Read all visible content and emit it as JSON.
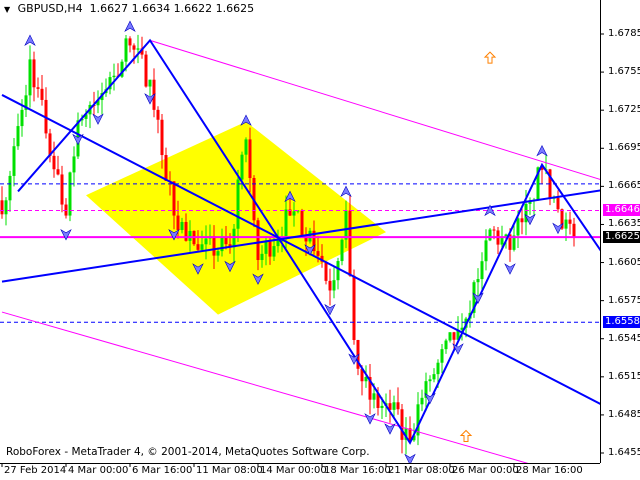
{
  "header": {
    "symbol": "GBPUSD,H4",
    "open": "1.6627",
    "high": "1.6634",
    "low": "1.6622",
    "close": "1.6625"
  },
  "copyright": "RoboForex - MetaTrader 4, © 2001-2014, MetaQuotes Software Corp.",
  "price_labels": [
    {
      "value": "1.6646",
      "bg": "#ff00ff",
      "fg": "#ffffff"
    },
    {
      "value": "1.6625",
      "bg": "#000000",
      "fg": "#ffffff"
    },
    {
      "value": "1.6558",
      "bg": "#0000ff",
      "fg": "#ffffff"
    }
  ],
  "colors": {
    "bull": "#00e000",
    "bear": "#ff0000",
    "trend": "#0000ff",
    "channel": "#ff00ff",
    "zone": "#ffff00",
    "arrow": "#ff8000"
  },
  "chart_data": {
    "type": "candlestick",
    "title": "GBPUSD,H4",
    "timeframe": "H4",
    "ylim": [
      1.644,
      1.681
    ],
    "y_ticks": [
      "1.6785",
      "1.6755",
      "1.6725",
      "1.6695",
      "1.6665",
      "1.6635",
      "1.6605",
      "1.6575",
      "1.6545",
      "1.6515",
      "1.6485",
      "1.6455"
    ],
    "x_ticks": [
      {
        "label": "27 Feb 2014",
        "t": "2014-02-27 08:00"
      },
      {
        "label": "4 Mar 00:00",
        "t": "2014-03-04 00:00"
      },
      {
        "label": "6 Mar 16:00",
        "t": "2014-03-06 16:00"
      },
      {
        "label": "11 Mar 08:00",
        "t": "2014-03-11 08:00"
      },
      {
        "label": "14 Mar 00:00",
        "t": "2014-03-14 00:00"
      },
      {
        "label": "18 Mar 16:00",
        "t": "2014-03-18 16:00"
      },
      {
        "label": "21 Mar 08:00",
        "t": "2014-03-21 08:00"
      },
      {
        "label": "26 Mar 00:00",
        "t": "2014-03-26 00:00"
      },
      {
        "label": "28 Mar 16:00",
        "t": "2014-03-28 16:00"
      }
    ],
    "price_path": [
      {
        "t": "2014-02-27 12:00",
        "p": 1.6654
      },
      {
        "t": "2014-02-28 12:00",
        "p": 1.6765
      },
      {
        "t": "2014-03-04 00:00",
        "p": 1.6642
      },
      {
        "t": "2014-03-04 12:00",
        "p": 1.6717
      },
      {
        "t": "2014-03-05 08:00",
        "p": 1.6733
      },
      {
        "t": "2014-03-06 16:00",
        "p": 1.6776
      },
      {
        "t": "2014-03-07 12:00",
        "p": 1.6749
      },
      {
        "t": "2014-03-10 12:00",
        "p": 1.6642
      },
      {
        "t": "2014-03-11 12:00",
        "p": 1.6615
      },
      {
        "t": "2014-03-12 20:00",
        "p": 1.6617
      },
      {
        "t": "2014-03-13 12:00",
        "p": 1.6702
      },
      {
        "t": "2014-03-14 00:00",
        "p": 1.6607
      },
      {
        "t": "2014-03-17 08:00",
        "p": 1.6642
      },
      {
        "t": "2014-03-18 04:00",
        "p": 1.663
      },
      {
        "t": "2014-03-19 00:00",
        "p": 1.6583
      },
      {
        "t": "2014-03-19 16:00",
        "p": 1.6646
      },
      {
        "t": "2014-03-20 00:00",
        "p": 1.6544
      },
      {
        "t": "2014-03-20 16:00",
        "p": 1.6497
      },
      {
        "t": "2014-03-21 12:00",
        "p": 1.6489
      },
      {
        "t": "2014-03-24 08:00",
        "p": 1.6465
      },
      {
        "t": "2014-03-25 04:00",
        "p": 1.6513
      },
      {
        "t": "2014-03-26 08:00",
        "p": 1.6552
      },
      {
        "t": "2014-03-27 04:00",
        "p": 1.6592
      },
      {
        "t": "2014-03-27 16:00",
        "p": 1.6631
      },
      {
        "t": "2014-03-28 12:00",
        "p": 1.6615
      },
      {
        "t": "2014-03-31 08:00",
        "p": 1.6654
      },
      {
        "t": "2014-03-31 20:00",
        "p": 1.6678
      },
      {
        "t": "2014-04-01 12:00",
        "p": 1.6647
      },
      {
        "t": "2014-04-02 04:00",
        "p": 1.6625
      }
    ],
    "horizontal_lines": [
      {
        "price": 1.6625,
        "color": "#ff00ff",
        "style": "solid"
      },
      {
        "price": 1.6646,
        "color": "#ff00ff",
        "style": "dashed"
      },
      {
        "price": 1.6558,
        "color": "#0000ff",
        "style": "dashed"
      },
      {
        "price": 1.6667,
        "color": "#0000ff",
        "style": "dashed"
      }
    ],
    "trend_lines": [
      {
        "name": "channel-top",
        "color": "#ff00ff",
        "width": 1,
        "pts": [
          [
            "2014-03-07 12:00",
            1.678
          ],
          [
            "2014-04-03 08:00",
            1.667
          ]
        ]
      },
      {
        "name": "channel-bottom",
        "color": "#ff00ff",
        "width": 1,
        "pts": [
          [
            "2014-02-27 08:00",
            1.6566
          ],
          [
            "2014-04-03 08:00",
            1.643
          ]
        ]
      },
      {
        "name": "trend-down",
        "color": "#0000ff",
        "width": 2,
        "pts": [
          [
            "2014-02-27 08:00",
            1.6737
          ],
          [
            "2014-04-03 08:00",
            1.6493
          ]
        ]
      },
      {
        "name": "trend-up",
        "color": "#0000ff",
        "width": 2,
        "pts": [
          [
            "2014-02-27 08:00",
            1.659
          ],
          [
            "2014-04-03 08:00",
            1.6662
          ]
        ]
      },
      {
        "name": "forecast-zigzag",
        "color": "#0000ff",
        "width": 2,
        "pts": [
          [
            "2014-02-28 00:00",
            1.6661
          ],
          [
            "2014-03-07 12:00",
            1.678
          ],
          [
            "2014-03-17 00:00",
            1.662
          ],
          [
            "2014-03-24 08:00",
            1.6463
          ],
          [
            "2014-03-31 20:00",
            1.6682
          ],
          [
            "2014-04-03 08:00",
            1.6613
          ]
        ]
      }
    ],
    "zone": {
      "color": "#ffff00",
      "pts": [
        [
          "2014-03-04 20:00",
          1.6658
        ],
        [
          "2014-03-13 12:00",
          1.6716
        ],
        [
          "2014-03-21 08:00",
          1.6629
        ],
        [
          "2014-03-12 08:00",
          1.6564
        ]
      ]
    },
    "up_arrows": [
      {
        "t": "2014-03-27 16:00",
        "p": 1.6766
      },
      {
        "t": "2014-03-26 16:00",
        "p": 1.6468
      }
    ]
  }
}
